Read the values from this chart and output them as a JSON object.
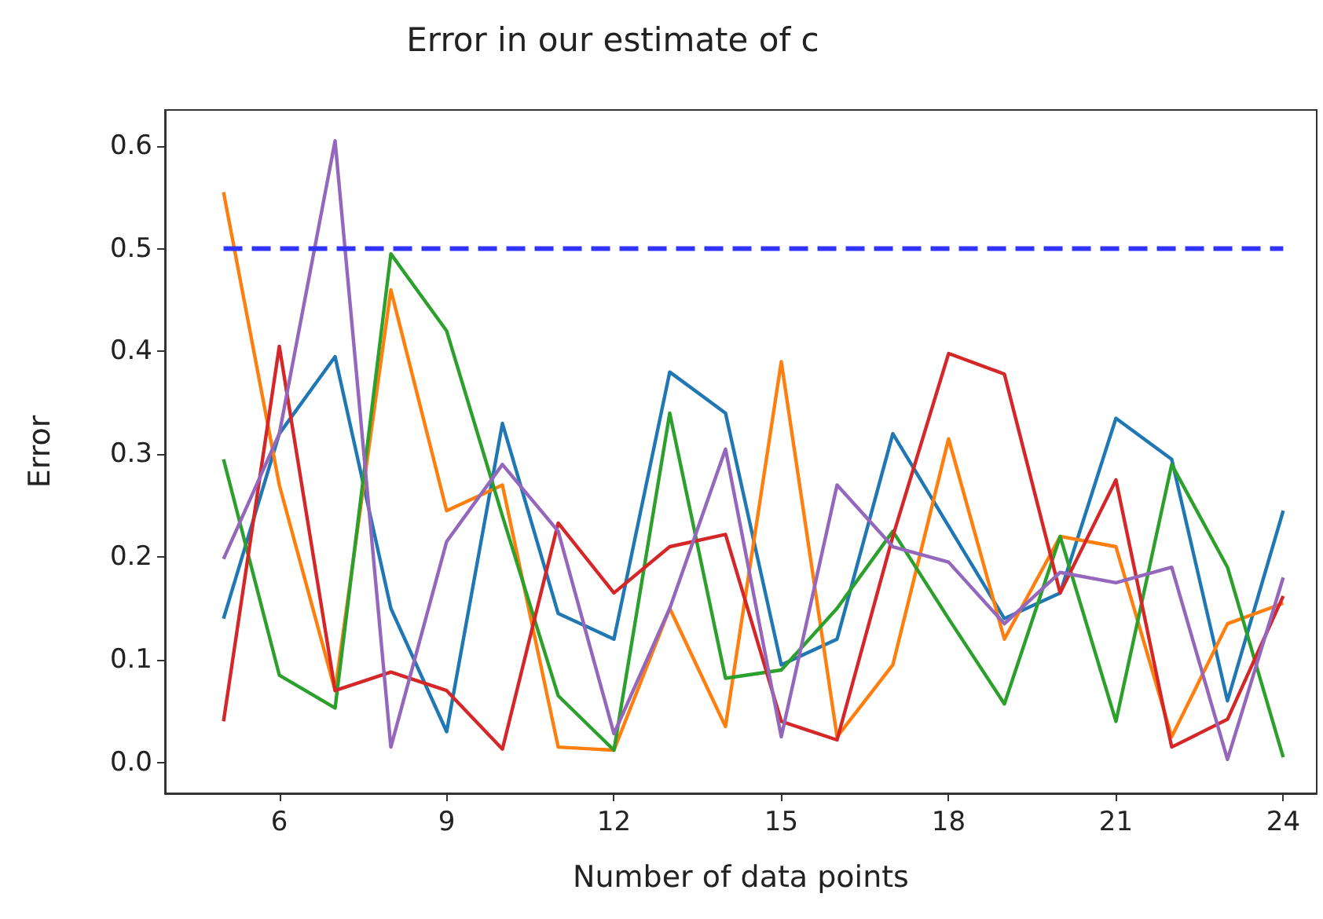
{
  "chart_data": {
    "type": "line",
    "title": "Error in our estimate of c",
    "xlabel": "Number of data points",
    "ylabel": "Error",
    "x": [
      5,
      6,
      7,
      8,
      9,
      10,
      11,
      12,
      13,
      14,
      15,
      16,
      17,
      18,
      19,
      20,
      21,
      22,
      23,
      24
    ],
    "xlim": [
      3.95,
      24.6
    ],
    "xticks": [
      6,
      9,
      12,
      15,
      18,
      21,
      24
    ],
    "ylim": [
      -0.03,
      0.635
    ],
    "yticks": [
      {
        "value": 0,
        "label": "0.0"
      },
      {
        "value": 0.1,
        "label": "0.1"
      },
      {
        "value": 0.2,
        "label": "0.2"
      },
      {
        "value": 0.3,
        "label": "0.3"
      },
      {
        "value": 0.4,
        "label": "0.4"
      },
      {
        "value": 0.5,
        "label": "0.5"
      },
      {
        "value": 0.6,
        "label": "0.6"
      }
    ],
    "grid": false,
    "marker": "none",
    "series": [
      {
        "color": "#1f77b4",
        "values": [
          0.14,
          0.32,
          0.395,
          0.15,
          0.03,
          0.33,
          0.145,
          0.12,
          0.38,
          0.34,
          0.095,
          0.12,
          0.32,
          0.23,
          0.14,
          0.165,
          0.335,
          0.295,
          0.06,
          0.245
        ]
      },
      {
        "color": "#ff7f0e",
        "values": [
          0.555,
          0.27,
          0.07,
          0.46,
          0.245,
          0.27,
          0.015,
          0.012,
          0.15,
          0.035,
          0.39,
          0.025,
          0.095,
          0.315,
          0.12,
          0.22,
          0.21,
          0.025,
          0.135,
          0.155
        ]
      },
      {
        "color": "#2ca02c",
        "values": [
          0.295,
          0.085,
          0.053,
          0.495,
          0.42,
          0.24,
          0.065,
          0.012,
          0.34,
          0.082,
          0.09,
          0.15,
          0.225,
          0.14,
          0.057,
          0.22,
          0.04,
          0.29,
          0.19,
          0.005
        ]
      },
      {
        "color": "#d62728",
        "values": [
          0.04,
          0.405,
          0.07,
          0.088,
          0.07,
          0.013,
          0.233,
          0.165,
          0.21,
          0.222,
          0.04,
          0.022,
          0.22,
          0.398,
          0.378,
          0.165,
          0.275,
          0.015,
          0.042,
          0.162
        ]
      },
      {
        "color": "#9467bd",
        "values": [
          0.198,
          0.32,
          0.605,
          0.015,
          0.215,
          0.29,
          0.225,
          0.028,
          0.15,
          0.305,
          0.025,
          0.27,
          0.21,
          0.195,
          0.135,
          0.185,
          0.175,
          0.19,
          0.003,
          0.18
        ]
      },
      {
        "color": "#3333ff",
        "x": [
          5,
          24
        ],
        "values": [
          0.5,
          0.5
        ],
        "line_style": "dashed"
      }
    ]
  }
}
